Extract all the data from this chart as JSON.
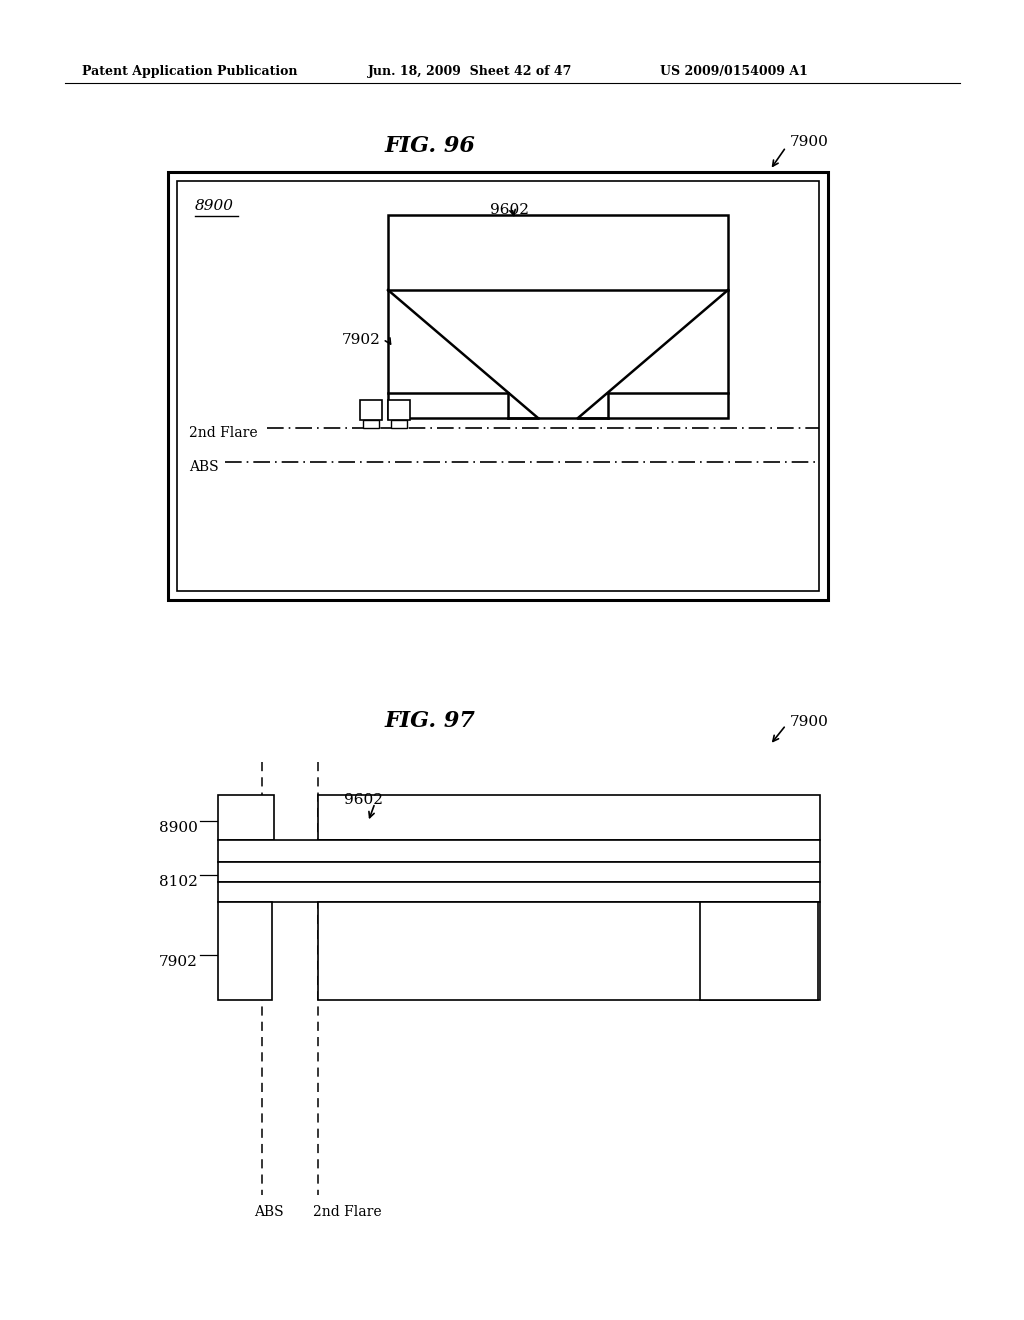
{
  "bg_color": "#ffffff",
  "header_left": "Patent Application Publication",
  "header_mid": "Jun. 18, 2009  Sheet 42 of 47",
  "header_right": "US 2009/0154009 A1",
  "fig96_title": "FIG. 96",
  "fig97_title": "FIG. 97",
  "lbl_7900": "7900",
  "lbl_8900": "8900",
  "lbl_9602": "9602",
  "lbl_7902": "7902",
  "lbl_8102": "8102",
  "lbl_2nd_flare": "2nd Flare",
  "lbl_abs": "ABS"
}
